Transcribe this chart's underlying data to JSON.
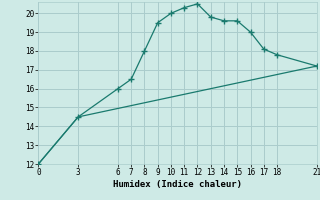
{
  "xlabel": "Humidex (Indice chaleur)",
  "bg_color": "#ceeae6",
  "grid_color": "#aacccc",
  "line_color": "#1a7a6e",
  "xlim": [
    0,
    21
  ],
  "ylim": [
    12,
    20.6
  ],
  "xticks": [
    0,
    3,
    6,
    7,
    8,
    9,
    10,
    11,
    12,
    13,
    14,
    15,
    16,
    17,
    18,
    21
  ],
  "yticks": [
    12,
    13,
    14,
    15,
    16,
    17,
    18,
    19,
    20
  ],
  "curve1_x": [
    0,
    3,
    6,
    7,
    8,
    9,
    10,
    11,
    12,
    13,
    14,
    15,
    16,
    17,
    18,
    21
  ],
  "curve1_y": [
    12,
    14.5,
    16.0,
    16.5,
    18.0,
    19.5,
    20.0,
    20.3,
    20.5,
    19.8,
    19.6,
    19.6,
    19.0,
    18.1,
    17.8,
    17.2
  ],
  "curve2_x": [
    0,
    3,
    21
  ],
  "curve2_y": [
    12,
    14.5,
    17.2
  ]
}
